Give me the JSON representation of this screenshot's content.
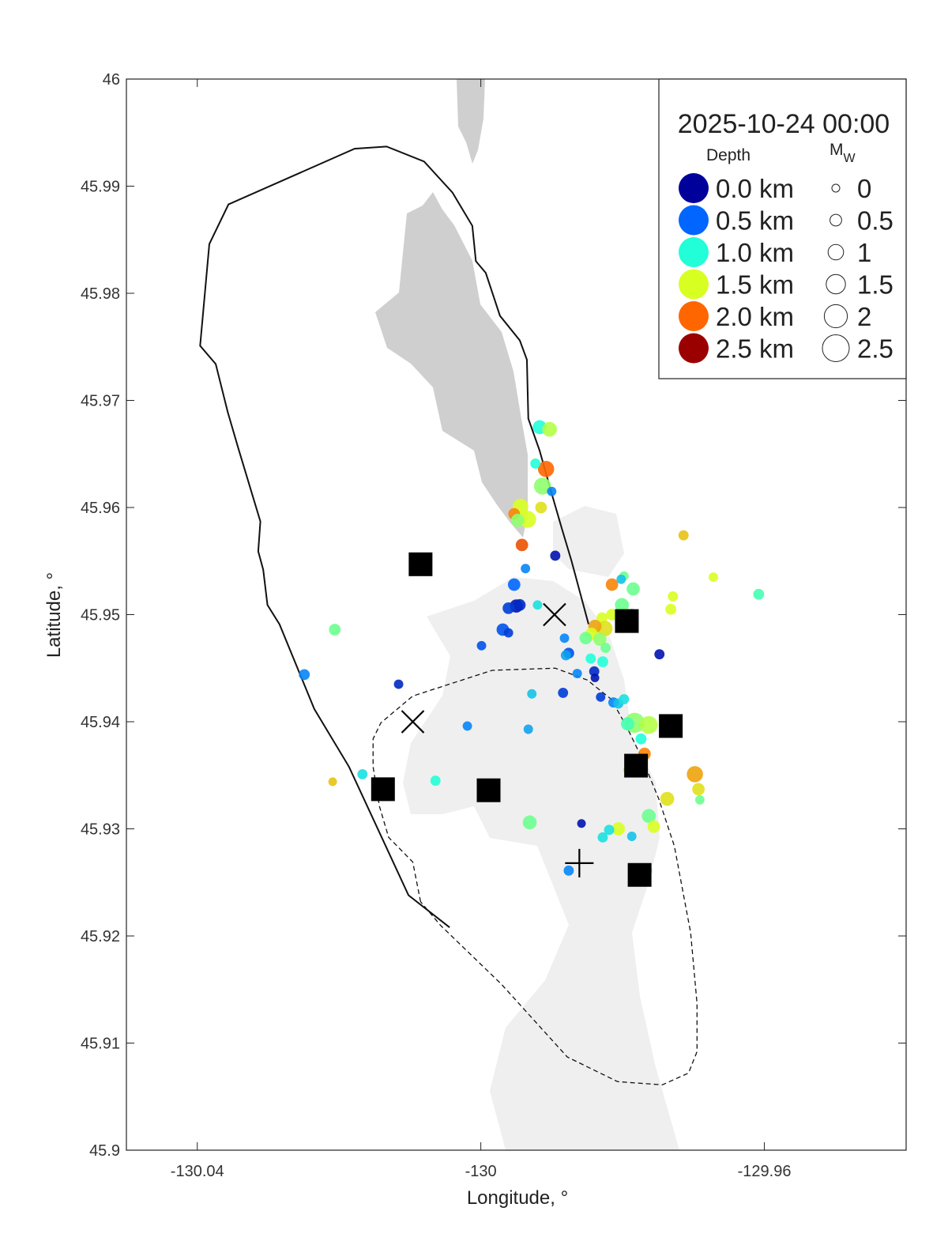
{
  "chart_data": {
    "type": "scatter",
    "title": "2025-10-24 00:00",
    "xlabel": "Longitude, °",
    "ylabel": "Latitude, °",
    "xlim": [
      -130.05,
      -129.94
    ],
    "ylim": [
      45.9,
      46
    ],
    "xticks": [
      -130.04,
      -130,
      -129.96
    ],
    "yticks": [
      45.9,
      45.91,
      45.92,
      45.93,
      45.94,
      45.95,
      45.96,
      45.97,
      45.98,
      45.99,
      46
    ],
    "depth_title": "Depth",
    "mw_title": {
      "main": "M",
      "sub": "W"
    },
    "depth_legend": [
      {
        "value": 0,
        "label": "0.0 km",
        "color": "#00009b"
      },
      {
        "value": 0.5,
        "label": "0.5 km",
        "color": "#0066ff"
      },
      {
        "value": 1,
        "label": "1.0 km",
        "color": "#22ffd8"
      },
      {
        "value": 1.5,
        "label": "1.5 km",
        "color": "#d8ff22"
      },
      {
        "value": 2,
        "label": "2.0 km",
        "color": "#ff6600"
      },
      {
        "value": 2.5,
        "label": "2.5 km",
        "color": "#9b0000"
      }
    ],
    "mw_legend": [
      0,
      0.5,
      1,
      1.5,
      2,
      2.5
    ],
    "events": {
      "x": [
        -129.9917,
        -129.9903,
        -129.9908,
        -129.9923,
        -129.9913,
        -129.99,
        -129.9944,
        -129.9953,
        -129.9934,
        -129.9915,
        -129.9948,
        -129.9942,
        -129.9895,
        -129.9937,
        -129.9953,
        -129.995,
        -129.9945,
        -129.9961,
        -129.992,
        -129.9969,
        -129.9961,
        -129.9999,
        -129.9882,
        -129.9876,
        -129.988,
        -129.9864,
        -129.984,
        -129.9839,
        -129.9884,
        -129.9928,
        -129.9831,
        -129.9813,
        -129.9806,
        -129.9798,
        -130.0116,
        -130.0019,
        -129.9933,
        -129.9783,
        -129.9763,
        -129.9793,
        -129.9774,
        -129.9769,
        -129.9793,
        -129.9698,
        -129.9693,
        -129.9691,
        -129.9737,
        -129.9763,
        -129.9756,
        -129.9806,
        -129.9819,
        -129.9828,
        -129.9787,
        -129.9858,
        -129.9931,
        -130.0064,
        -130.0167,
        -130.0209,
        -130.0249,
        -130.0206,
        -129.9876,
        -129.9767,
        -129.9748,
        -129.9815,
        -129.9785,
        -129.9798,
        -129.9802,
        -129.9714,
        -129.9672,
        -129.9608,
        -129.9729,
        -129.9732,
        -129.9801,
        -129.9794,
        -129.9787,
        -129.9829,
        -129.9815,
        -129.9825,
        -129.9839,
        -129.9844,
        -129.9852,
        -129.9795,
        -129.9832,
        -129.9824,
        -129.9845,
        -129.9828
      ],
      "y": [
        45.9675,
        45.9673,
        45.9636,
        45.9641,
        45.962,
        45.9615,
        45.9601,
        45.9594,
        45.9589,
        45.96,
        45.9588,
        45.9565,
        45.9555,
        45.9543,
        45.9528,
        45.9508,
        45.9509,
        45.9506,
        45.9509,
        45.9486,
        45.9483,
        45.9471,
        45.9478,
        45.9464,
        45.9462,
        45.9445,
        45.9447,
        45.9441,
        45.9427,
        45.9426,
        45.9423,
        45.9418,
        45.9417,
        45.9421,
        45.9435,
        45.9396,
        45.9393,
        45.9399,
        45.9397,
        45.9398,
        45.9384,
        45.937,
        45.9355,
        45.9351,
        45.9337,
        45.9327,
        45.9328,
        45.9312,
        45.9302,
        45.93,
        45.9299,
        45.9292,
        45.9293,
        45.9305,
        45.9306,
        45.9345,
        45.9351,
        45.9344,
        45.9444,
        45.9486,
        45.9261,
        45.9261,
        45.9463,
        45.9528,
        45.9524,
        45.9536,
        45.9533,
        45.9574,
        45.9535,
        45.9519,
        45.9517,
        45.9505,
        45.9509,
        45.95,
        45.9501,
        45.9497,
        45.95,
        45.9487,
        45.9489,
        45.9482,
        45.9478,
        45.9489,
        45.9477,
        45.9469,
        45.9459,
        45.9456
      ],
      "depth": [
        1,
        1.4,
        2,
        1,
        1.3,
        0.6,
        1.5,
        1.9,
        1.5,
        1.6,
        1.3,
        2.1,
        0.1,
        0.6,
        0.5,
        0.1,
        0.2,
        0.3,
        0.9,
        0.4,
        0.3,
        0.4,
        0.6,
        0.4,
        0.7,
        0.6,
        0.2,
        0.1,
        0.3,
        0.8,
        0.3,
        0.6,
        0.8,
        0.9,
        0.2,
        0.6,
        0.7,
        1.3,
        1.4,
        1.1,
        1,
        1.9,
        1.6,
        1.8,
        1.6,
        1.2,
        1.6,
        1.2,
        1.5,
        1.5,
        0.9,
        0.9,
        0.8,
        0.1,
        1.2,
        1,
        0.9,
        1.7,
        0.6,
        1.2,
        0.6,
        1.2,
        0.1,
        1.9,
        1.2,
        1.2,
        0.8,
        1.7,
        1.5,
        1.1,
        1.5,
        1.5,
        1.2,
        1.4,
        0.8,
        1.5,
        1.5,
        1.6,
        1.8,
        1.5,
        1.2,
        1.2,
        1.3,
        1.2,
        1,
        1
      ],
      "mw": [
        0.8,
        0.9,
        1.1,
        0.3,
        1.2,
        0.2,
        1,
        0.5,
        1.2,
        0.5,
        0.7,
        0.6,
        0.3,
        0.2,
        0.6,
        0.7,
        0.5,
        0.5,
        0.2,
        0.6,
        0.2,
        0.2,
        0.2,
        0.4,
        0.3,
        0.2,
        0.3,
        0.1,
        0.3,
        0.2,
        0.2,
        0.3,
        0.3,
        0.3,
        0.2,
        0.2,
        0.2,
        1.6,
        1.3,
        0.7,
        0.4,
        0.6,
        0.1,
        1.1,
        0.6,
        0.2,
        0.8,
        0.8,
        0.6,
        0.7,
        0.3,
        0.3,
        0.2,
        0.1,
        0.8,
        0.3,
        0.3,
        0.1,
        0.4,
        0.5,
        0.3,
        0.6,
        0.3,
        0.6,
        0.7,
        0.2,
        0.2,
        0.3,
        0.2,
        0.4,
        0.3,
        0.4,
        0.8,
        0.6,
        0.2,
        0.4,
        0.5,
        1,
        0.7,
        0.6,
        0.6,
        0.4,
        0.7,
        0.3,
        0.3,
        0.4
      ]
    },
    "outlines": [
      {
        "style": "solid",
        "x": [
          -130.0044,
          -130.0102,
          -130.0186,
          -130.0235,
          -130.0284,
          -130.0301,
          -130.0307,
          -130.0314,
          -130.0311,
          -130.0342,
          -130.0357,
          -130.0374,
          -130.0396,
          -130.0383,
          -130.0356,
          -130.0178,
          -130.0133,
          -130.008,
          -130.004,
          -130.0012,
          -130.0007,
          -129.9993,
          -129.9973,
          -129.9945,
          -129.9935,
          -129.9933,
          -129.9917,
          -129.99,
          -129.9886,
          -129.9872,
          -129.9848
        ],
        "y": [
          45.9208,
          45.9238,
          45.9358,
          45.9412,
          45.9491,
          45.9509,
          45.9542,
          45.9559,
          45.9587,
          45.9655,
          45.9689,
          45.9734,
          45.9751,
          45.9846,
          45.9883,
          45.9935,
          45.9937,
          45.9923,
          45.9894,
          45.9863,
          45.983,
          45.9819,
          45.9779,
          45.9756,
          45.9738,
          45.9683,
          45.9653,
          45.9613,
          45.9581,
          45.955,
          45.9491
        ]
      },
      {
        "style": "dashed",
        "x": [
          -130.0085,
          -130.0096,
          -130.013,
          -130.0143,
          -130.0152,
          -130.0152,
          -130.0141,
          -130.0096,
          -129.9984,
          -129.9895,
          -129.985,
          -129.9816,
          -129.9794,
          -129.9772,
          -129.9749,
          -129.9727,
          -129.9704,
          -129.9695,
          -129.9695,
          -129.9707,
          -129.9744,
          -129.9807,
          -129.9878,
          -129.9971,
          -130.0057,
          -130.0085
        ],
        "y": [
          45.9232,
          45.9269,
          45.9292,
          45.9321,
          45.9358,
          45.9384,
          45.9399,
          45.9424,
          45.9448,
          45.945,
          45.9439,
          45.9421,
          45.9395,
          45.9365,
          45.9328,
          45.9284,
          45.9203,
          45.9137,
          45.9092,
          45.9072,
          45.9061,
          45.9064,
          45.9087,
          45.9155,
          45.921,
          45.9232
        ]
      }
    ],
    "stations": {
      "x": [
        -130.0085,
        -129.9794,
        -129.9732,
        -129.9781,
        -130.0138,
        -129.9989,
        -129.9776
      ],
      "y": [
        45.9547,
        45.9494,
        45.9396,
        45.9359,
        45.9337,
        45.9336,
        45.9257
      ]
    },
    "crosses": {
      "x": [
        -129.9896,
        -130.0096
      ],
      "y": [
        45.95,
        45.94
      ]
    },
    "plus": {
      "x": [
        -129.9861
      ],
      "y": [
        45.9268
      ]
    }
  }
}
